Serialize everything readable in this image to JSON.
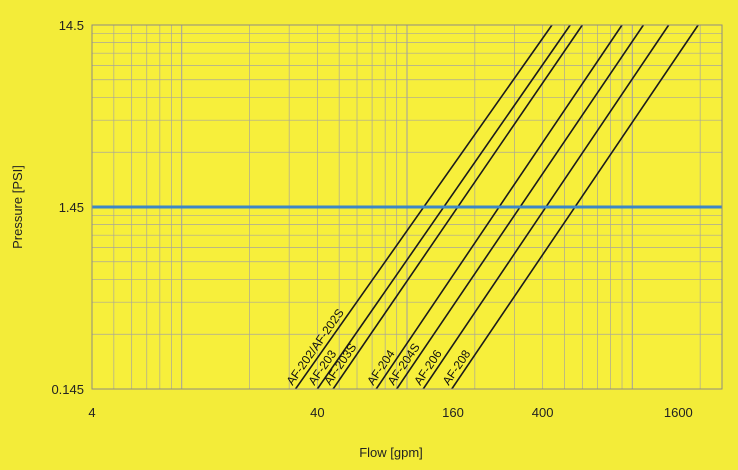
{
  "chart_data": {
    "type": "line",
    "xlabel": "Flow [gpm]",
    "ylabel": "Pressure [PSI]",
    "x_scale": "log",
    "y_scale": "log",
    "xlim": [
      4,
      2500
    ],
    "ylim": [
      0.145,
      14.5
    ],
    "x_tick_labels": [
      "4",
      "40",
      "160",
      "400",
      "1600"
    ],
    "x_tick_values": [
      4,
      40,
      160,
      400,
      1600
    ],
    "y_tick_labels": [
      "14.5",
      "1.45",
      "0.145"
    ],
    "y_tick_values": [
      14.5,
      1.45,
      0.145
    ],
    "grid": true,
    "series": [
      {
        "name": "AF-202/AF-202S",
        "x": [
          32,
          440
        ],
        "y": [
          0.145,
          14.5
        ]
      },
      {
        "name": "AF-203",
        "x": [
          40,
          530
        ],
        "y": [
          0.145,
          14.5
        ]
      },
      {
        "name": "AF-203S",
        "x": [
          47,
          600
        ],
        "y": [
          0.145,
          14.5
        ]
      },
      {
        "name": "AF-204",
        "x": [
          73,
          900
        ],
        "y": [
          0.145,
          14.5
        ]
      },
      {
        "name": "AF-204S",
        "x": [
          90,
          1120
        ],
        "y": [
          0.145,
          14.5
        ]
      },
      {
        "name": "AF-206",
        "x": [
          118,
          1450
        ],
        "y": [
          0.145,
          14.5
        ]
      },
      {
        "name": "AF-208",
        "x": [
          158,
          1960
        ],
        "y": [
          0.145,
          14.5
        ]
      }
    ],
    "reference_line": {
      "y": 1.45,
      "color": "#3d87c6"
    },
    "colors": {
      "background": "#f3ec39",
      "plot_background": "#f7ef3b",
      "grid": "#a9a69a",
      "series_line": "#1b1b1b",
      "reference_line": "#3d87c6"
    }
  }
}
